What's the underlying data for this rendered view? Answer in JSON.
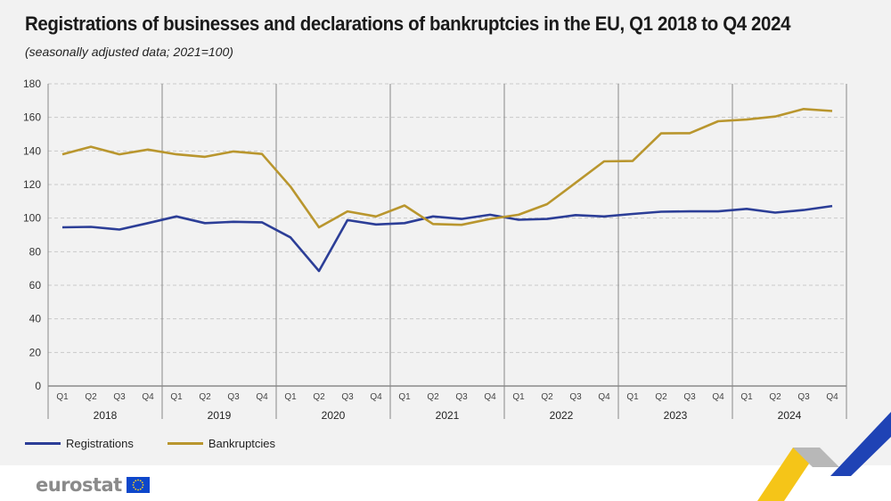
{
  "title": "Registrations of businesses and declarations of bankruptcies in the EU, Q1 2018 to Q4 2024",
  "subtitle": "(seasonally adjusted data; 2021=100)",
  "brand": "eurostat",
  "colors": {
    "registrations": "#2c3e97",
    "bankruptcies": "#b9962e",
    "grid": "#c9c9c9"
  },
  "chart_data": {
    "type": "line",
    "ylim": [
      0,
      180
    ],
    "yticks": [
      0,
      20,
      40,
      60,
      80,
      100,
      120,
      140,
      160,
      180
    ],
    "years": [
      "2018",
      "2019",
      "2020",
      "2021",
      "2022",
      "2023",
      "2024"
    ],
    "quarters": [
      "Q1",
      "Q2",
      "Q3",
      "Q4"
    ],
    "grid": true,
    "legend_position": "bottom-left",
    "series": [
      {
        "name": "Registrations",
        "values": [
          94.5,
          94.8,
          93.2,
          97.0,
          101.0,
          97.0,
          97.8,
          97.5,
          88.5,
          68.5,
          98.8,
          96.2,
          97.0,
          101.0,
          99.5,
          102.0,
          99.0,
          99.5,
          101.8,
          101.0,
          102.5,
          103.8,
          104.0,
          104.0,
          105.5,
          103.3,
          104.8,
          107.2
        ]
      },
      {
        "name": "Bankruptcies",
        "values": [
          138.0,
          142.5,
          138.0,
          140.8,
          138.0,
          136.5,
          139.7,
          138.2,
          118.8,
          94.5,
          104.0,
          101.0,
          107.5,
          96.5,
          96.0,
          99.5,
          102.0,
          108.3,
          121.0,
          133.8,
          134.0,
          150.5,
          150.6,
          157.7,
          158.7,
          160.5,
          165.0,
          163.8
        ]
      }
    ]
  }
}
